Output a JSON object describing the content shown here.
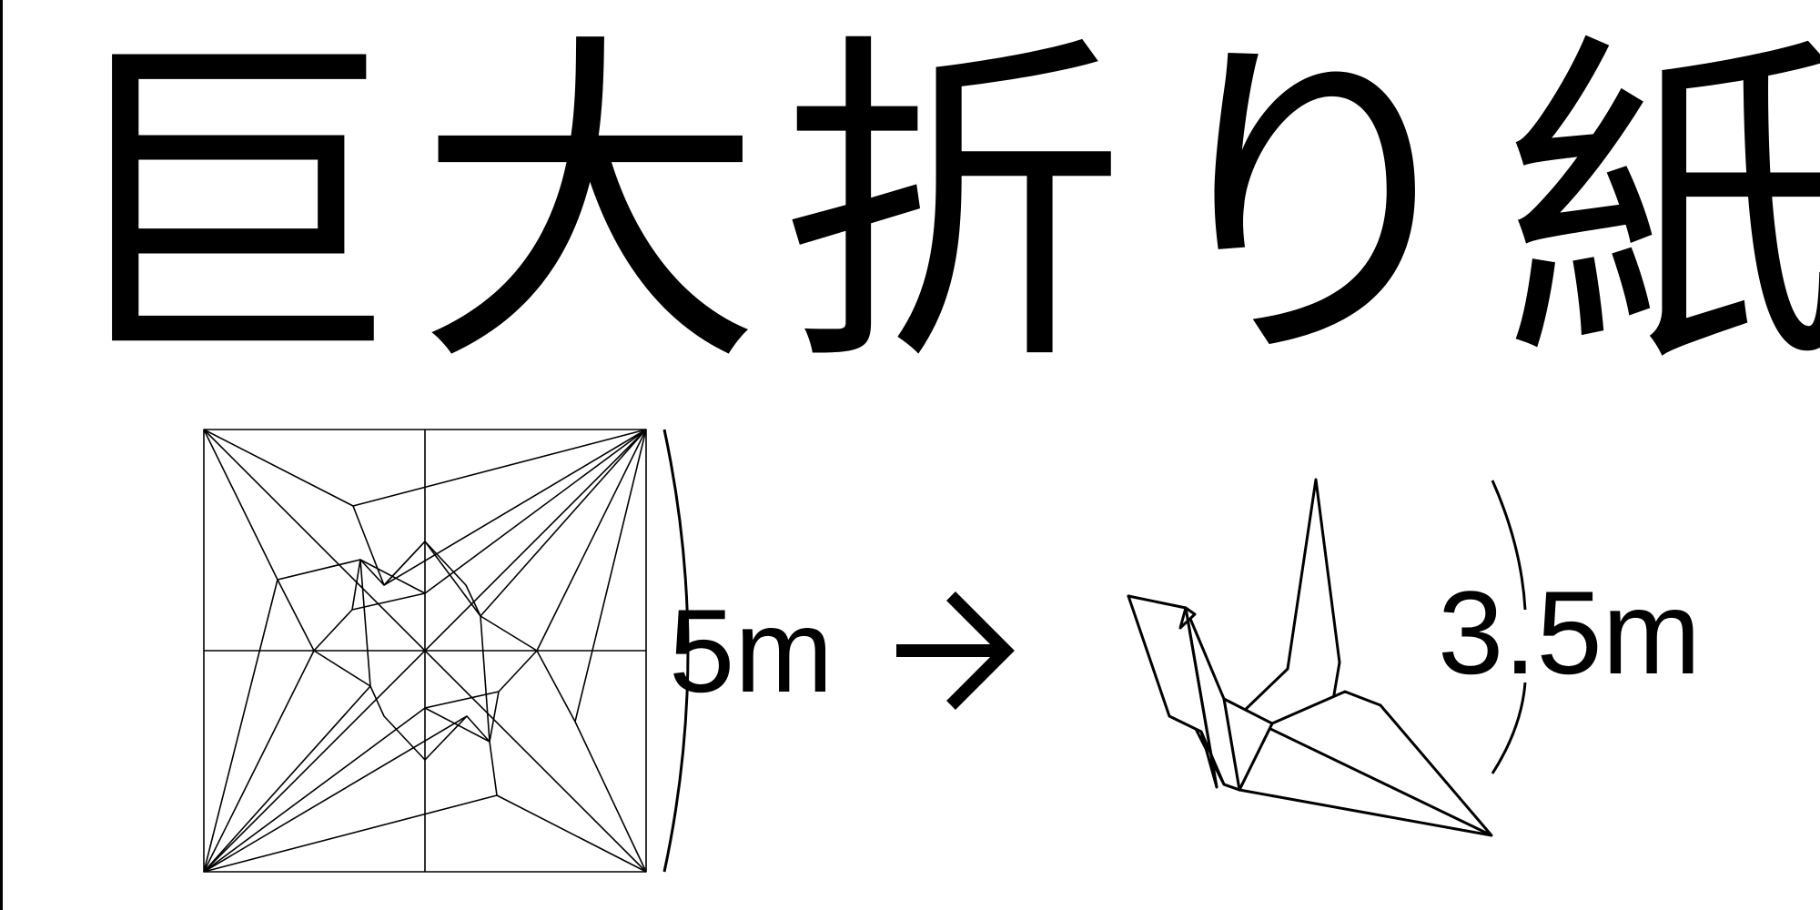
{
  "title": "巨大折り紙",
  "sheet_size_label": "5m",
  "crane_size_label": "3.5m",
  "colors": {
    "ink": "#000000",
    "background": "#ffffff"
  }
}
